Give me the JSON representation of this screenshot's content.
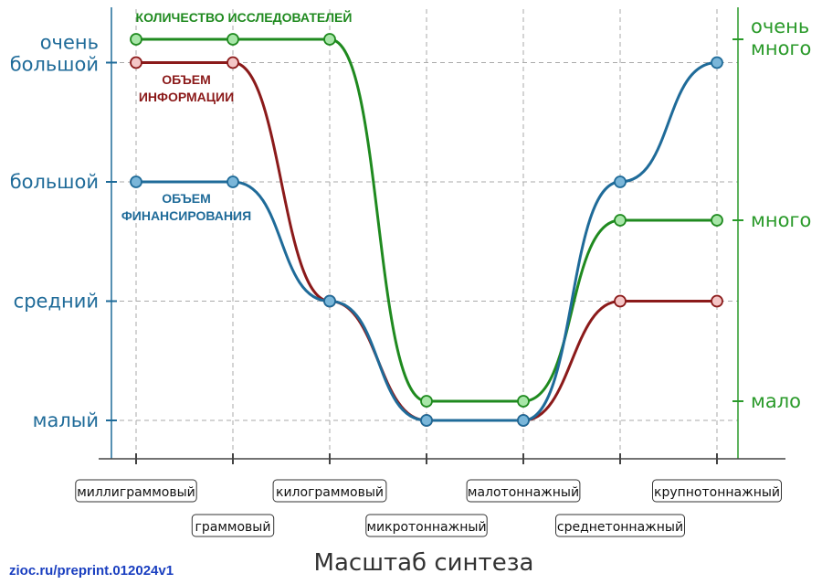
{
  "chart_data": {
    "type": "line",
    "xlabel": "Масштаб синтеза",
    "categories": [
      "миллиграммовый",
      "граммовый",
      "килограммовый",
      "микротоннажный",
      "малотоннажный",
      "среднетоннажный",
      "крупнотоннажный"
    ],
    "y_left": {
      "ticks": [
        "малый",
        "средний",
        "большой",
        "очень\nбольшой"
      ],
      "range": [
        0,
        3
      ]
    },
    "y_right": {
      "ticks": [
        "мало",
        "много",
        "очень\nмного"
      ],
      "range": [
        0,
        2
      ]
    },
    "series": [
      {
        "name": "ОБЪЕМ\nФИНАНСИРОВАНИЯ",
        "axis": "left",
        "color": "#1f6b99",
        "fill": "#7ab6d9",
        "values": [
          2,
          2,
          1,
          0,
          0,
          2,
          3
        ]
      },
      {
        "name": "ОБЪЕМ\nИНФОРМАЦИИ",
        "axis": "left",
        "color": "#8b1a1a",
        "fill": "#f4c6c6",
        "values": [
          3,
          3,
          1,
          0,
          0,
          1,
          1
        ]
      },
      {
        "name": "КОЛИЧЕСТВО ИССЛЕДОВАТЕЛЕЙ",
        "axis": "right",
        "color": "#1f8a1f",
        "fill": "#a8e6a8",
        "values": [
          2,
          2,
          2,
          0,
          0,
          1,
          1
        ]
      }
    ],
    "grid": true
  },
  "source": "zioc.ru/preprint.012024v1",
  "colors": {
    "left_axis": "#1f6b99",
    "right_axis": "#2a9a2a",
    "grid": "#aaaaaa",
    "x_axis": "#444444"
  }
}
